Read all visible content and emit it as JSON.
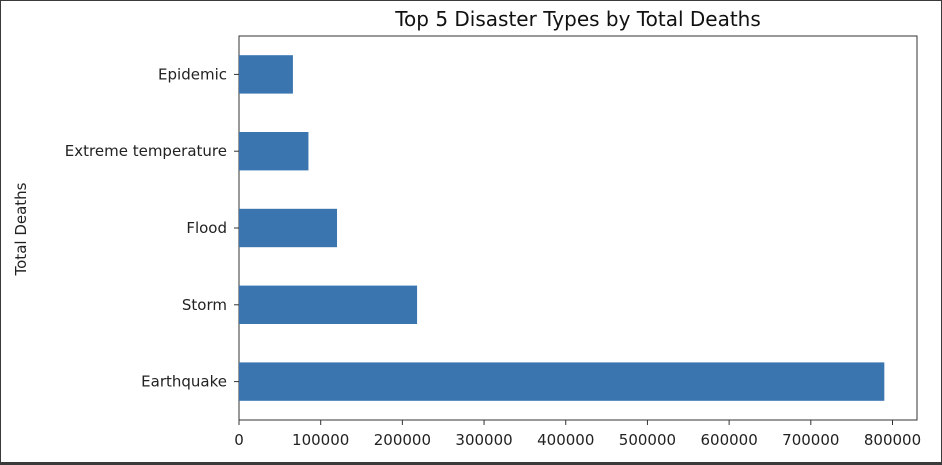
{
  "chart_data": {
    "type": "bar",
    "orientation": "horizontal",
    "title": "Top 5 Disaster Types by Total Deaths",
    "xlabel": "",
    "ylabel": "Total Deaths",
    "categories": [
      "Earthquake",
      "Storm",
      "Flood",
      "Extreme temperature",
      "Epidemic"
    ],
    "values": [
      790000,
      218000,
      120000,
      85000,
      66000
    ],
    "xlim": [
      0,
      830000
    ],
    "xticks": [
      "0",
      "100000",
      "200000",
      "300000",
      "400000",
      "500000",
      "600000",
      "700000",
      "800000"
    ],
    "bar_color": "#3a75b0",
    "grid": false,
    "legend": "none"
  }
}
